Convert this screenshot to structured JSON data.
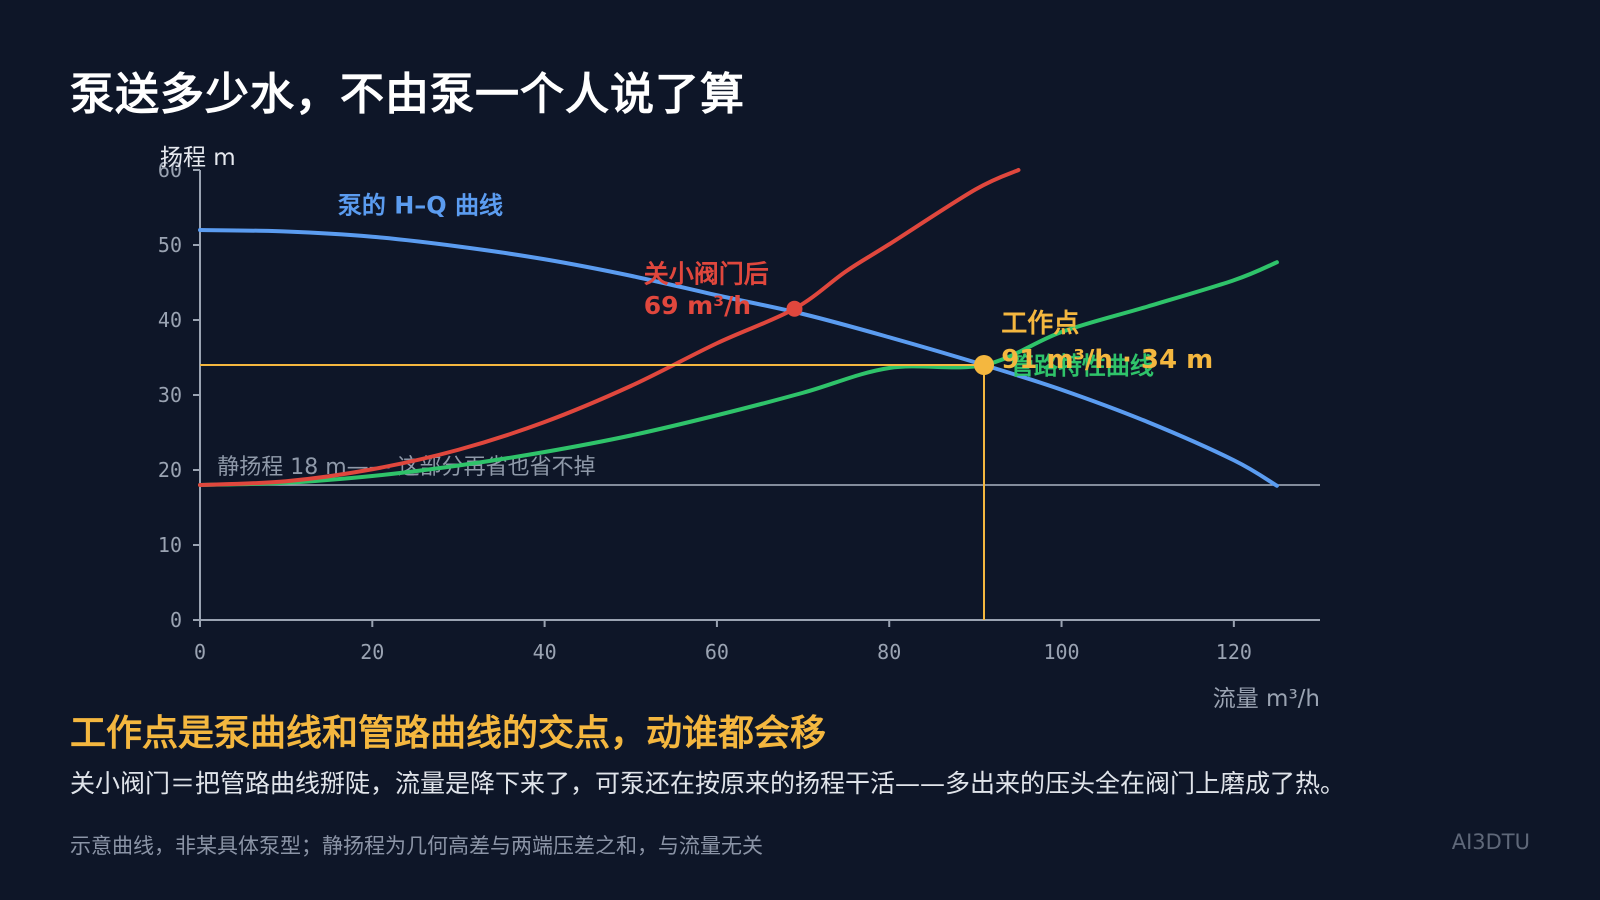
{
  "title": "泵送多少水，不由泵一个人说了算",
  "conclusion": "工作点是泵曲线和管路曲线的交点，动谁都会移",
  "explanation": "关小阀门＝把管路曲线掰陡，流量是降下来了，可泵还在按原来的扬程干活——多出来的压头全在阀门上磨成了热。",
  "footnote": "示意曲线，非某具体泵型；静扬程为几何高差与两端压差之和，与流量无关",
  "brand": "AI3DTU",
  "colors": {
    "background": "#0e1628",
    "pump": "#5b9cf0",
    "pipe": "#2fc36a",
    "throttled": "#e0473d",
    "operating": "#f4b73f",
    "axis": "#9aa3b2"
  },
  "chart_data": {
    "type": "line",
    "xlabel": "流量 m³/h",
    "ylabel": "扬程 m",
    "xlim": [
      0,
      130
    ],
    "ylim": [
      0,
      60
    ],
    "xticks": [
      0,
      20,
      40,
      60,
      80,
      100,
      120
    ],
    "yticks": [
      0,
      10,
      20,
      30,
      40,
      50,
      60
    ],
    "static_head": 18,
    "static_head_label": "静扬程 18 m—— 这部分再省也省不掉",
    "series": [
      {
        "name": "泵的 H–Q 曲线",
        "x": [
          0,
          10,
          20,
          30,
          40,
          50,
          60,
          70,
          80,
          91,
          100,
          110,
          120,
          125
        ],
        "y": [
          52,
          51.8,
          51.1,
          49.8,
          48.1,
          45.9,
          43.3,
          40.8,
          37.7,
          34,
          30.7,
          26.4,
          21.3,
          17.9
        ]
      },
      {
        "name": "管路特性曲线",
        "x": [
          0,
          10,
          20,
          30,
          40,
          50,
          60,
          70,
          80,
          91,
          100,
          110,
          120,
          125
        ],
        "y": [
          18,
          18.3,
          19.2,
          20.6,
          22.4,
          24.6,
          27.3,
          30.3,
          33.6,
          34,
          38.4,
          41.8,
          45.3,
          47.7
        ]
      },
      {
        "name": "关小阀门后",
        "x": [
          0,
          10,
          20,
          30,
          40,
          50,
          60,
          69,
          75,
          80,
          90,
          95
        ],
        "y": [
          18,
          18.5,
          20.1,
          22.7,
          26.4,
          31.2,
          36.9,
          41.5,
          46.5,
          50.1,
          57.4,
          60
        ]
      }
    ],
    "operating_point": {
      "x": 91,
      "y": 34,
      "title": "工作点",
      "value_label": "91 m³/h · 34 m"
    },
    "throttled_point": {
      "x": 69,
      "y": 41.5,
      "title": "关小阀门后",
      "value_label": "69 m³/h"
    }
  }
}
